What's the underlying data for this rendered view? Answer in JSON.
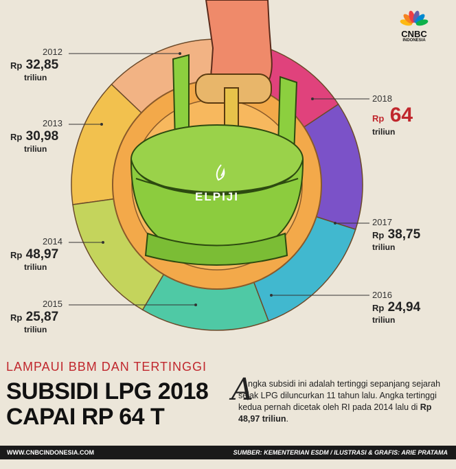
{
  "brand": {
    "logo_text": "CNBC",
    "logo_sub": "INDONESIA",
    "peacock_colors": [
      "#fdb913",
      "#f58220",
      "#ef3e42",
      "#6460aa",
      "#0089d0",
      "#0db14b"
    ]
  },
  "can_label": "ELPIJI",
  "chart_data": {
    "type": "pie",
    "categories": [
      "2012",
      "2013",
      "2014",
      "2015",
      "2016",
      "2017",
      "2018"
    ],
    "values": [
      32.85,
      30.98,
      48.97,
      25.87,
      24.94,
      38.75,
      64
    ],
    "unit_prefix": "Rp",
    "unit_suffix": "triliun",
    "colors": [
      "#f2b384",
      "#f2c14e",
      "#c4d45c",
      "#4fc9a5",
      "#41b8cf",
      "#7b52c8",
      "#e0427c"
    ],
    "highlight": "2018"
  },
  "labels": [
    {
      "year": "2012",
      "rp": "Rp",
      "value": "32,85",
      "unit": "triliun"
    },
    {
      "year": "2013",
      "rp": "Rp",
      "value": "30,98",
      "unit": "triliun"
    },
    {
      "year": "2014",
      "rp": "Rp",
      "value": "48,97",
      "unit": "triliun"
    },
    {
      "year": "2015",
      "rp": "Rp",
      "value": "25,87",
      "unit": "triliun"
    },
    {
      "year": "2016",
      "rp": "Rp",
      "value": "24,94",
      "unit": "triliun"
    },
    {
      "year": "2017",
      "rp": "Rp",
      "value": "38,75",
      "unit": "triliun"
    },
    {
      "year": "2018",
      "rp": "Rp",
      "value": "64",
      "unit": "triliun"
    }
  ],
  "kicker": "LAMPAUI BBM DAN TERTINGGI",
  "headline_1": "SUBSIDI LPG 2018",
  "headline_2": "CAPAI RP 64 T",
  "body": {
    "drop_cap": "A",
    "text_1": "ngka subsidi ini adalah tertinggi sepanjang sejarah sejak LPG diluncurkan 11 tahun lalu. Angka tertinggi kedua pernah dicetak oleh RI pada 2014 lalu di ",
    "bold": "Rp 48,97 triliun",
    "text_2": "."
  },
  "footer": {
    "website": "WWW.CNBCINDONESIA.COM",
    "credits": "SUMBER: KEMENTERIAN ESDM / ILUSTRASI & GRAFIS: ARIE PRATAMA"
  }
}
